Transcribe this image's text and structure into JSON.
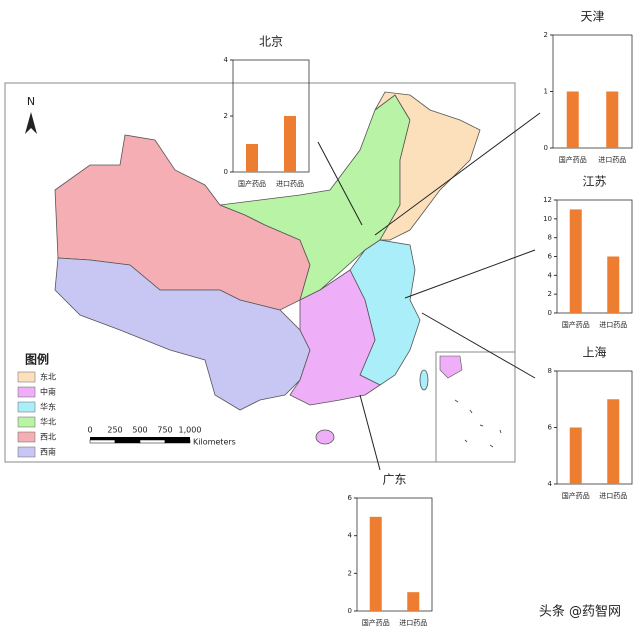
{
  "map": {
    "north": "N",
    "legend": {
      "title": "图例",
      "entries": [
        {
          "name": "东北",
          "color": "#fbe0bb"
        },
        {
          "name": "中南",
          "color": "#efaef8"
        },
        {
          "name": "华东",
          "color": "#aaeef9"
        },
        {
          "name": "华北",
          "color": "#b9f3a6"
        },
        {
          "name": "西北",
          "color": "#f4aeb4"
        },
        {
          "name": "西南",
          "color": "#c8c6f3"
        }
      ]
    },
    "scale": {
      "ticks": [
        0,
        250,
        500,
        750,
        {
          "value": 1000,
          "label": "1,000"
        }
      ],
      "unit": "Kilometers"
    },
    "watermark": "头条 @药智网"
  },
  "chart_data": [
    {
      "type": "bar",
      "title": "北京",
      "categories": [
        "国产药品",
        "进口药品"
      ],
      "values": [
        1,
        2
      ],
      "color": "#ed7d31",
      "ylim": [
        0,
        4
      ],
      "yticks": [
        0,
        2,
        4
      ]
    },
    {
      "type": "bar",
      "title": "天津",
      "categories": [
        "国产药品",
        "进口药品"
      ],
      "values": [
        1,
        1
      ],
      "color": "#ed7d31",
      "ylim": [
        0,
        2
      ],
      "yticks": [
        0,
        1,
        2
      ]
    },
    {
      "type": "bar",
      "title": "江苏",
      "categories": [
        "国产药品",
        "进口药品"
      ],
      "values": [
        11,
        6
      ],
      "color": "#ed7d31",
      "ylim": [
        0,
        12
      ],
      "yticks": [
        0,
        2,
        4,
        6,
        8,
        10,
        12
      ]
    },
    {
      "type": "bar",
      "title": "上海",
      "categories": [
        "国产药品",
        "进口药品"
      ],
      "values": [
        6,
        7
      ],
      "color": "#ed7d31",
      "ylim": [
        4,
        8
      ],
      "yticks": [
        4,
        6,
        8
      ]
    },
    {
      "type": "bar",
      "title": "广东",
      "categories": [
        "国产药品",
        "进口药品"
      ],
      "values": [
        5,
        1
      ],
      "color": "#ed7d31",
      "ylim": [
        0,
        6
      ],
      "yticks": [
        0,
        2,
        4,
        6
      ]
    }
  ]
}
